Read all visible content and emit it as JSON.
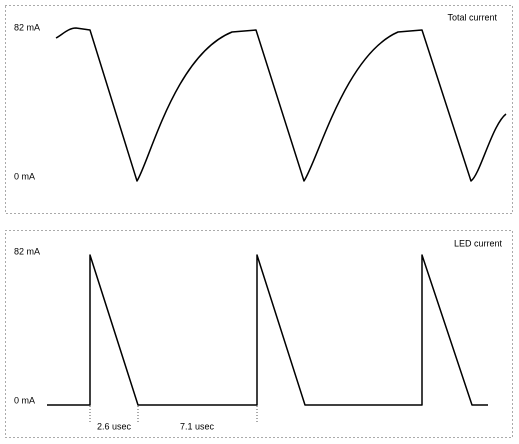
{
  "panels": [
    {
      "title": "Total current",
      "top_label": "82 mA",
      "bottom_label": "0 mA"
    },
    {
      "title": "LED current",
      "top_label": "82 mA",
      "bottom_label": "0 mA",
      "annotations": [
        "2.6 usec",
        "7.1 usec"
      ]
    }
  ]
}
